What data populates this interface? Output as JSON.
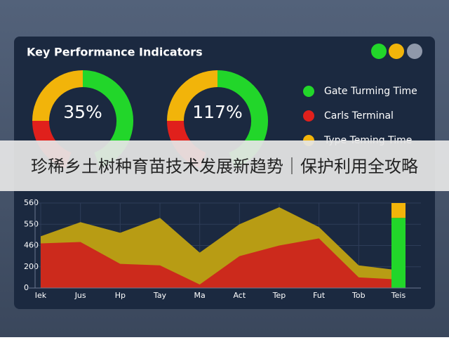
{
  "header": {
    "title": "Key Performance Indicators"
  },
  "gauges": [
    {
      "label": "35%"
    },
    {
      "label": "117%"
    }
  ],
  "legend": [
    {
      "label": "Gate Turming Time",
      "color": "#22d62a"
    },
    {
      "label": "Carls Terminal",
      "color": "#e0201c"
    },
    {
      "label": "Type Teming Time",
      "color": "#f2b40a"
    }
  ],
  "banner": {
    "text": "珍稀乡土树种育苗技术发展新趋势｜保护利用全攻略"
  },
  "chart_data": {
    "type": "area",
    "categories": [
      "Iek",
      "Jus",
      "Hp",
      "Tay",
      "Ma",
      "Act",
      "Tep",
      "Fut",
      "Tob",
      "Teis"
    ],
    "series": [
      {
        "color": "#b89c14",
        "values": [
          499,
          551,
          514,
          553,
          373,
          550,
          558,
          538,
          217,
          167
        ]
      },
      {
        "color": "#cc2a1c",
        "values": [
          469,
          475,
          235,
          217,
          33,
          330,
          460,
          490,
          100,
          80
        ]
      },
      {
        "type": "bar",
        "color": "#22d62a",
        "values": [
          null,
          null,
          null,
          null,
          null,
          null,
          null,
          null,
          null,
          553
        ]
      },
      {
        "type": "bar",
        "color": "#f2b40a",
        "values": [
          null,
          null,
          null,
          null,
          null,
          null,
          null,
          null,
          null,
          7
        ]
      }
    ],
    "ylim": [
      0,
      560
    ],
    "yticks": [
      0,
      200,
      460,
      550,
      560
    ],
    "grid": true
  }
}
